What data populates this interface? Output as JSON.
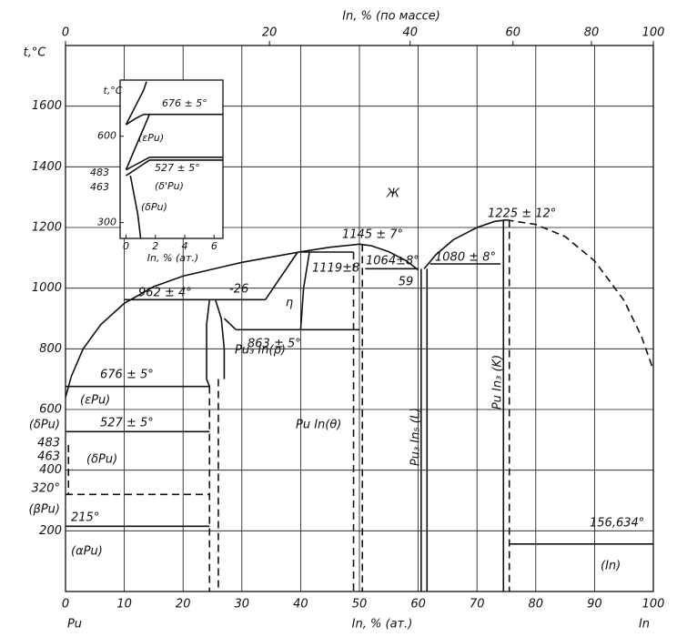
{
  "chart_data": {
    "type": "line",
    "title": "In, % (по массе)",
    "x_label": "In, % (ат.)",
    "y_label": "t,°C",
    "left_element": "Pu",
    "right_element": "In",
    "color": "#111",
    "grid": true,
    "xlim": [
      0,
      100
    ],
    "ylim": [
      0,
      1800
    ],
    "xticks": [
      0,
      10,
      20,
      30,
      40,
      50,
      60,
      70,
      80,
      90,
      100
    ],
    "yticks": [
      200,
      400,
      600,
      800,
      1000,
      1200,
      1400,
      1600
    ],
    "x2ticks": [
      0,
      20,
      40,
      60,
      80,
      100
    ],
    "series": [
      {
        "x": [
          0,
          1,
          3,
          6,
          10,
          15,
          20,
          30,
          40,
          45,
          50,
          52,
          55,
          58,
          60
        ],
        "values": [
          640,
          710,
          800,
          880,
          950,
          1005,
          1040,
          1085,
          1120,
          1135,
          1145,
          1140,
          1120,
          1090,
          1060
        ],
        "dashed": false
      },
      {
        "x": [
          61,
          63,
          66,
          70,
          73,
          75
        ],
        "values": [
          1064,
          1110,
          1160,
          1200,
          1220,
          1225
        ],
        "dashed": false
      },
      {
        "x": [
          75,
          80,
          85,
          90,
          95,
          98,
          100
        ],
        "values": [
          1225,
          1210,
          1170,
          1090,
          960,
          840,
          730
        ],
        "dashed": true
      },
      {
        "x": [
          0,
          24.5
        ],
        "values": [
          676,
          676
        ],
        "dashed": false
      },
      {
        "x": [
          0,
          24.5
        ],
        "values": [
          527,
          527
        ],
        "dashed": false
      },
      {
        "x": [
          0,
          24.5
        ],
        "values": [
          215,
          215
        ],
        "dashed": false
      },
      {
        "x": [
          0,
          24.5
        ],
        "values": [
          320,
          320
        ],
        "dashed": true
      },
      {
        "x": [
          0.5,
          0.5
        ],
        "values": [
          483,
          320
        ],
        "dashed": true
      },
      {
        "x": [
          10,
          34
        ],
        "values": [
          962,
          962
        ],
        "dashed": false
      },
      {
        "x": [
          24.5,
          24,
          24,
          24.5
        ],
        "values": [
          962,
          880,
          700,
          676
        ],
        "dashed": false
      },
      {
        "x": [
          24.5,
          24.5
        ],
        "values": [
          676,
          0
        ],
        "dashed": true
      },
      {
        "x": [
          25.5,
          26.5,
          27,
          27
        ],
        "values": [
          962,
          900,
          800,
          700
        ],
        "dashed": false
      },
      {
        "x": [
          26,
          26
        ],
        "values": [
          700,
          0
        ],
        "dashed": true
      },
      {
        "x": [
          27,
          29
        ],
        "values": [
          900,
          863
        ],
        "dashed": false
      },
      {
        "x": [
          29,
          50
        ],
        "values": [
          863,
          863
        ],
        "dashed": false
      },
      {
        "x": [
          34,
          39.5
        ],
        "values": [
          962,
          1119
        ],
        "dashed": false
      },
      {
        "x": [
          40,
          40.5,
          41.5
        ],
        "values": [
          863,
          1000,
          1119
        ],
        "dashed": false
      },
      {
        "x": [
          40,
          49
        ],
        "values": [
          1119,
          1119
        ],
        "dashed": false
      },
      {
        "x": [
          49,
          49
        ],
        "values": [
          1119,
          0
        ],
        "dashed": true
      },
      {
        "x": [
          50.5,
          50.5
        ],
        "values": [
          1145,
          0
        ],
        "dashed": true
      },
      {
        "x": [
          51,
          60
        ],
        "values": [
          1064,
          1064
        ],
        "dashed": false
      },
      {
        "x": [
          60.5,
          60.5
        ],
        "values": [
          1064,
          0
        ],
        "dashed": false
      },
      {
        "x": [
          61.5,
          61.5
        ],
        "values": [
          1064,
          0
        ],
        "dashed": false
      },
      {
        "x": [
          62,
          74
        ],
        "values": [
          1080,
          1080
        ],
        "dashed": false
      },
      {
        "x": [
          74.5,
          74.5
        ],
        "values": [
          1225,
          0
        ],
        "dashed": false
      },
      {
        "x": [
          75.5,
          75.5
        ],
        "values": [
          1225,
          0
        ],
        "dashed": true
      },
      {
        "x": [
          75.5,
          100
        ],
        "values": [
          156.634,
          156.634
        ],
        "dashed": false
      }
    ],
    "annotations": [
      "676 ± 5°",
      "527 ± 5°",
      "215°",
      "(εPu)",
      "(δPu)",
      "483",
      "463",
      "(δPu)",
      "320°",
      "(βPu)",
      "(αPu)",
      "962 ± 4°",
      "-26",
      "η",
      "863 ± 5°",
      "Pu₃ In(ρ)",
      "Pu In(θ)",
      "1119±8",
      "1145 ± 7°",
      "1064±8°",
      "59",
      "1080 ± 8°",
      "1225 ± 12°",
      "Ж",
      "Pu₃ In₅ (L)",
      "Pu In₃ (K)",
      "156,634°",
      "(In)"
    ],
    "inset": {
      "type": "line",
      "x_label": "In, % (ат.)",
      "y_label": "t,°C",
      "xlim": [
        -0.4,
        6.6
      ],
      "ylim": [
        245,
        795
      ],
      "xticks": [
        0,
        2,
        4,
        6
      ],
      "yticks": [
        300,
        600
      ],
      "series": [
        {
          "x": [
            0,
            0.6,
            1.2,
            1.4
          ],
          "values": [
            640,
            700,
            760,
            790
          ],
          "dashed": false
        },
        {
          "x": [
            0,
            0.6,
            1.2
          ],
          "values": [
            640,
            660,
            676
          ],
          "dashed": false
        },
        {
          "x": [
            1.2,
            6.6
          ],
          "values": [
            676,
            676
          ],
          "dashed": false
        },
        {
          "x": [
            0,
            0.8,
            1.6
          ],
          "values": [
            483,
            580,
            676
          ],
          "dashed": false
        },
        {
          "x": [
            1.6,
            6.6
          ],
          "values": [
            527,
            527
          ],
          "dashed": false
        },
        {
          "x": [
            1.6,
            6.6
          ],
          "values": [
            517,
            517
          ],
          "dashed": false
        },
        {
          "x": [
            0,
            1.6
          ],
          "values": [
            483,
            527
          ],
          "dashed": false
        },
        {
          "x": [
            0,
            0.8,
            1.6
          ],
          "values": [
            463,
            490,
            517
          ],
          "dashed": false
        },
        {
          "x": [
            0.3,
            0.8,
            1.0
          ],
          "values": [
            463,
            330,
            245
          ],
          "dashed": false
        }
      ],
      "annotations": [
        "676 ± 5°",
        "(εPu)",
        "527 ± 5°",
        "(δ'Pu)",
        "(δPu)",
        "483",
        "463"
      ]
    }
  }
}
